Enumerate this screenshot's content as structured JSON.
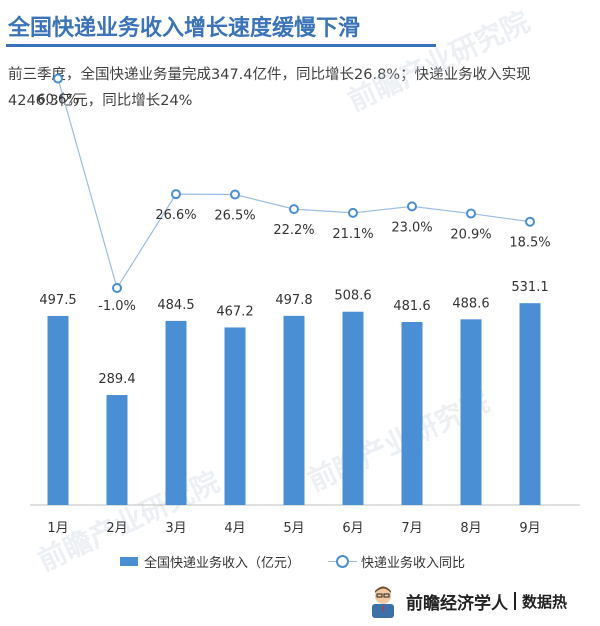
{
  "header": {
    "title": "全国快递业务收入增长速度缓慢下滑",
    "subtitle": "前三季度，全国快递业务量完成347.4亿件，同比增长26.8%；快递业务收入实现4246.3亿元，同比增长24%"
  },
  "watermark": "前瞻产业研究院",
  "chart_data": {
    "type": "bar",
    "categories": [
      "1月",
      "2月",
      "3月",
      "4月",
      "5月",
      "6月",
      "7月",
      "8月",
      "9月"
    ],
    "series": [
      {
        "name": "全国快递业务收入（亿元）",
        "type": "bar",
        "values": [
          497.5,
          289.4,
          484.5,
          467.2,
          497.8,
          508.6,
          481.6,
          488.6,
          531.1
        ],
        "labels": [
          "497.5",
          "289.4",
          "484.5",
          "467.2",
          "497.8",
          "508.6",
          "481.6",
          "488.6",
          "531.1"
        ]
      },
      {
        "name": "快递业务收入同比",
        "type": "line",
        "values": [
          60.6,
          -1.0,
          26.6,
          26.5,
          22.2,
          21.1,
          23.0,
          20.9,
          18.5
        ],
        "labels": [
          "60.6%",
          "-1.0%",
          "26.6%",
          "26.5%",
          "22.2%",
          "21.1%",
          "23.0%",
          "20.9%",
          "18.5%"
        ]
      }
    ],
    "legend_position": "bottom",
    "grid": false
  },
  "legend": {
    "bar_label": "全国快递业务收入（亿元）",
    "line_label": "快递业务收入同比"
  },
  "footer": {
    "brand": "前瞻经济学人",
    "sub": "数据热"
  },
  "colors": {
    "title": "#3a73b8",
    "bar": "#4a8fd4",
    "line": "#9bbde3",
    "marker": "#4a8fd4"
  }
}
